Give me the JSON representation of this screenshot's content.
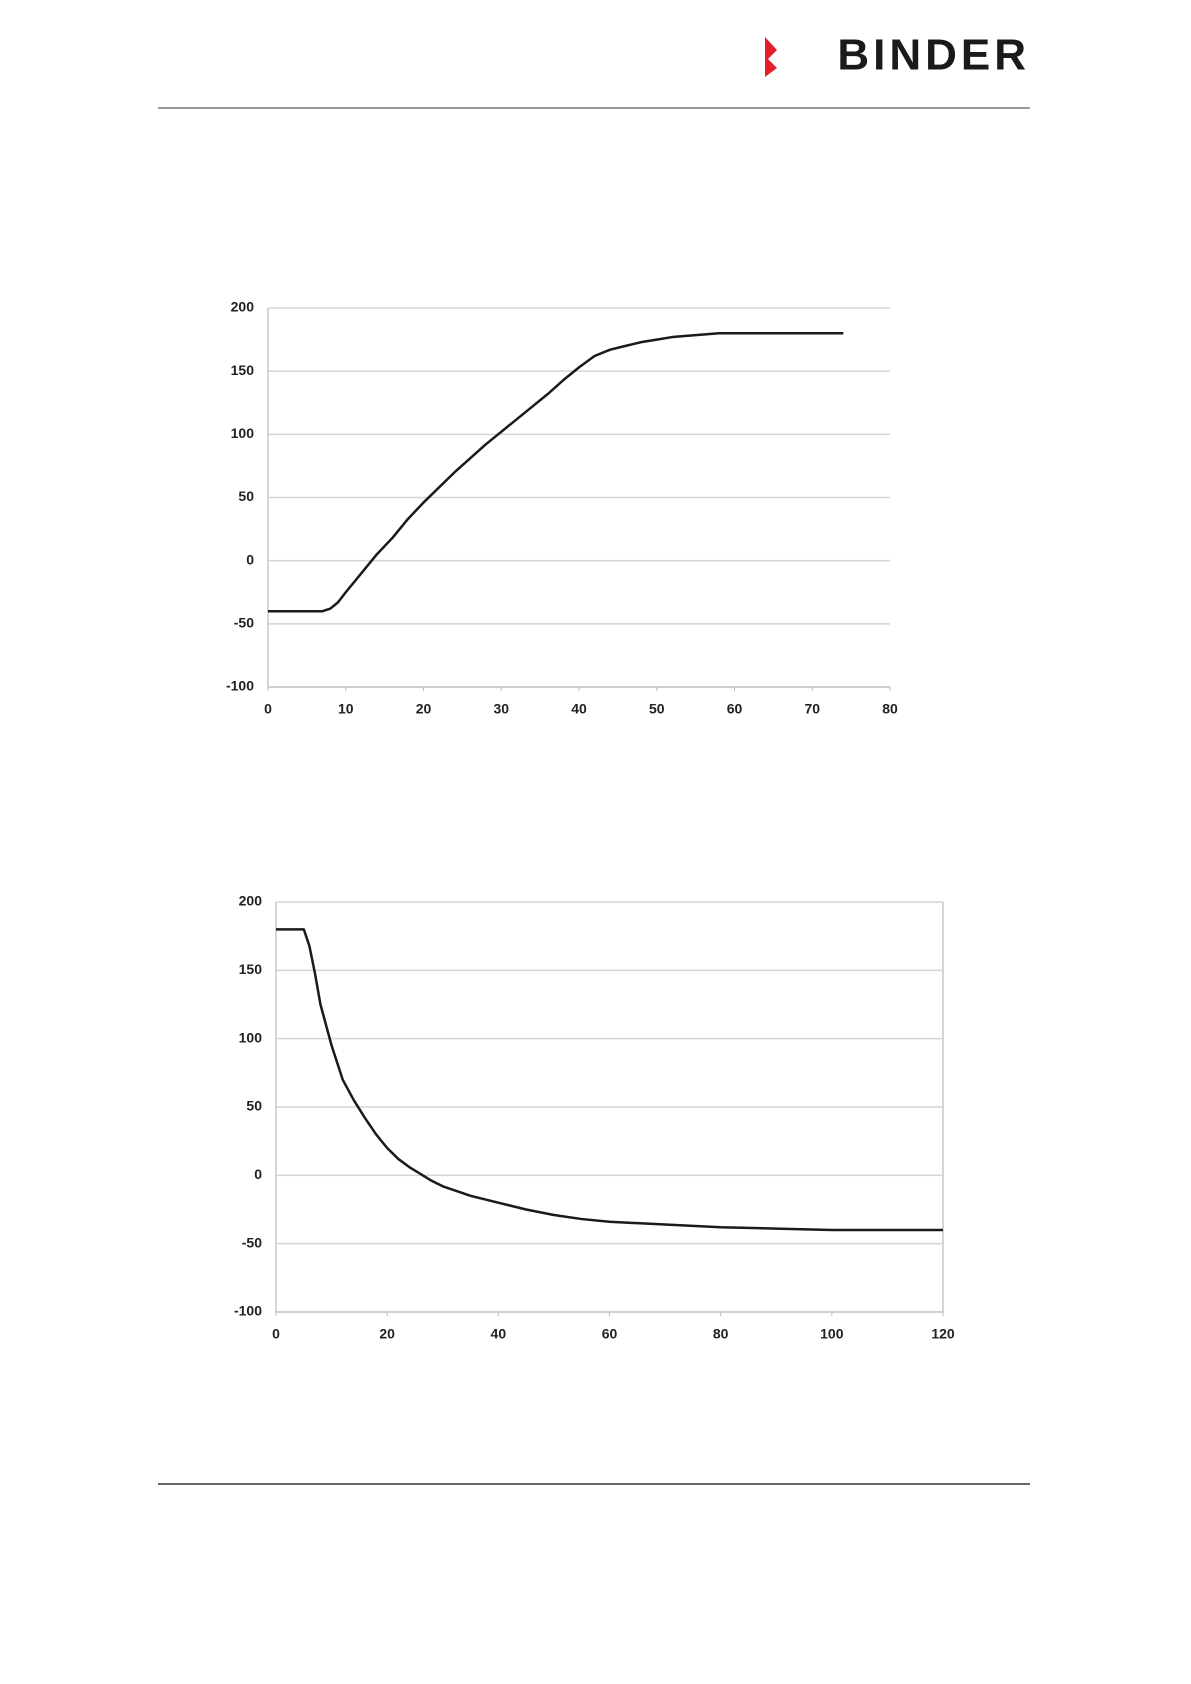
{
  "header": {
    "logo": "BINDER"
  },
  "chart_data": [
    {
      "type": "line",
      "x": [
        0,
        7,
        8,
        9,
        10,
        12,
        14,
        16,
        18,
        20,
        22,
        24,
        26,
        28,
        30,
        32,
        34,
        36,
        38,
        40,
        42,
        44,
        46,
        48,
        50,
        52,
        54,
        56,
        58,
        60,
        62,
        64,
        66,
        68,
        70,
        72,
        74
      ],
      "series": [
        {
          "color": "#1a1a1a",
          "values": [
            -40,
            -40,
            -38,
            -33,
            -25,
            -10,
            5,
            18,
            33,
            46,
            58,
            70,
            81,
            92,
            102,
            112,
            122,
            132,
            143,
            153,
            162,
            167,
            170,
            173,
            175,
            177,
            178,
            179,
            180,
            180,
            180,
            180,
            180,
            180,
            180,
            180,
            180
          ]
        }
      ],
      "xlim": [
        0,
        80
      ],
      "xticks": [
        0,
        10,
        20,
        30,
        40,
        50,
        60,
        70,
        80
      ],
      "ylim": [
        -100,
        200
      ],
      "yticks": [
        -100,
        -50,
        0,
        50,
        100,
        150,
        200
      ],
      "grid": true
    },
    {
      "type": "line",
      "x": [
        0,
        5,
        6,
        7,
        8,
        10,
        12,
        14,
        16,
        18,
        20,
        22,
        24,
        26,
        28,
        30,
        35,
        40,
        45,
        50,
        55,
        60,
        70,
        80,
        90,
        100,
        110,
        120
      ],
      "series": [
        {
          "color": "#1a1a1a",
          "values": [
            180,
            180,
            168,
            148,
            125,
            95,
            70,
            55,
            42,
            30,
            20,
            12,
            6,
            1,
            -4,
            -8,
            -15,
            -20,
            -25,
            -29,
            -32,
            -34,
            -36,
            -38,
            -39,
            -40,
            -40,
            -40
          ]
        }
      ],
      "xlim": [
        0,
        120
      ],
      "xticks": [
        0,
        20,
        40,
        60,
        80,
        100,
        120
      ],
      "ylim": [
        -100,
        200
      ],
      "yticks": [
        -100,
        -50,
        0,
        50,
        100,
        150,
        200
      ],
      "grid": true
    }
  ]
}
